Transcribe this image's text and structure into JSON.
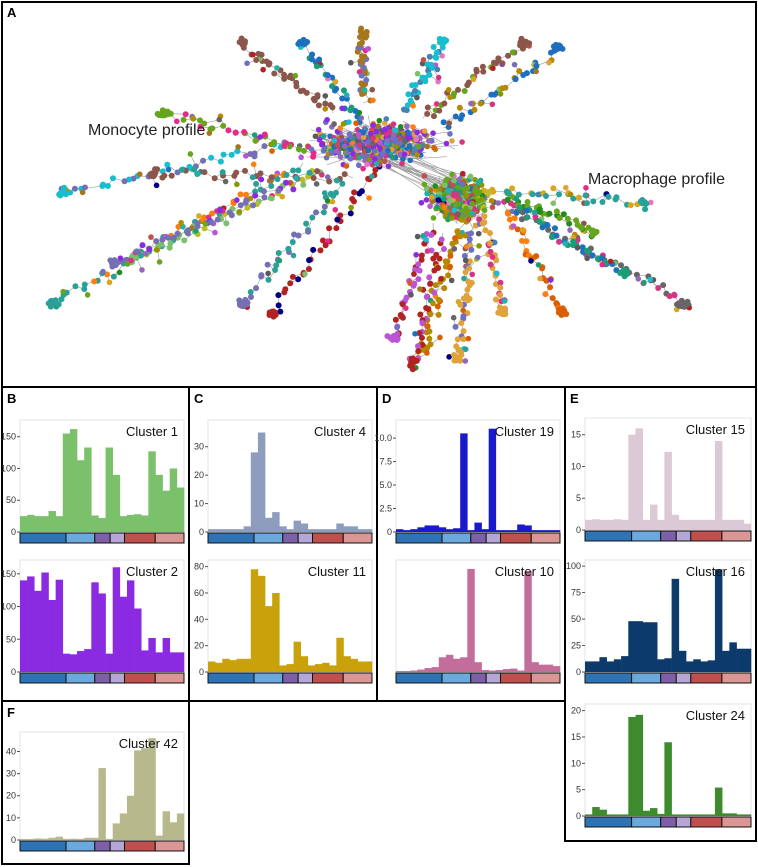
{
  "network": {
    "panel_label": "A",
    "left_label": "Monocyte profile",
    "right_label": "Macrophage profile"
  },
  "colorbar": [
    "#2e74b5",
    "#6aa8de",
    "#7d60a8",
    "#b4a7d6",
    "#c0504d",
    "#d99694"
  ],
  "panels": [
    {
      "label": "B"
    },
    {
      "label": "C"
    },
    {
      "label": "D"
    },
    {
      "label": "E"
    },
    {
      "label": "F"
    }
  ],
  "chart_data": [
    {
      "type": "bar",
      "title": "Cluster 1",
      "color": "#7bc16b",
      "ylim": [
        0,
        170
      ],
      "yticks": [
        "150",
        "100",
        "50",
        "0"
      ],
      "ytick_values": [
        150,
        100,
        50,
        0
      ],
      "values": [
        25,
        27,
        25,
        25,
        33,
        25,
        155,
        162,
        113,
        133,
        26,
        22,
        133,
        90,
        25,
        27,
        28,
        26,
        127,
        90,
        65,
        100,
        70
      ]
    },
    {
      "type": "bar",
      "title": "Cluster 2",
      "color": "#8a2be2",
      "ylim": [
        0,
        165
      ],
      "yticks": [
        "150",
        "100",
        "50",
        "0"
      ],
      "ytick_values": [
        150,
        100,
        50,
        0
      ],
      "values": [
        140,
        146,
        124,
        152,
        110,
        141,
        28,
        27,
        32,
        35,
        137,
        120,
        28,
        160,
        115,
        140,
        97,
        33,
        52,
        30,
        52,
        30,
        30
      ]
    },
    {
      "type": "bar",
      "title": "Cluster 4",
      "color": "#8e9dbe",
      "ylim": [
        0,
        38
      ],
      "yticks": [
        "30",
        "20",
        "10",
        "0"
      ],
      "ytick_values": [
        30,
        20,
        10,
        0
      ],
      "values": [
        1,
        1,
        1,
        1,
        1,
        2,
        28,
        35,
        5,
        7,
        2,
        1,
        4,
        3,
        1,
        1,
        1,
        1,
        3,
        2,
        2,
        1,
        1
      ]
    },
    {
      "type": "bar",
      "title": "Cluster 11",
      "color": "#c9a10a",
      "ylim": [
        0,
        82
      ],
      "yticks": [
        "80",
        "60",
        "40",
        "20",
        "0"
      ],
      "ytick_values": [
        80,
        60,
        40,
        20,
        0
      ],
      "values": [
        8,
        7,
        10,
        9,
        10,
        10,
        78,
        73,
        50,
        60,
        5,
        6,
        23,
        12,
        5,
        6,
        7,
        5,
        26,
        12,
        10,
        8,
        8
      ]
    },
    {
      "type": "bar",
      "title": "Cluster 19",
      "color": "#1a1acc",
      "ylim": [
        0,
        11.5
      ],
      "yticks": [
        "10.0",
        "7.5",
        "5.0",
        "2.5",
        "0"
      ],
      "ytick_values": [
        10,
        7.5,
        5,
        2.5,
        0
      ],
      "values": [
        0.3,
        0.2,
        0.3,
        0.5,
        0.7,
        0.7,
        0.5,
        0.3,
        0.4,
        10.5,
        0.2,
        1,
        0.3,
        11,
        0.2,
        0.2,
        0.2,
        0.8,
        0.7,
        0.2,
        0.2,
        0.2,
        0.2
      ]
    },
    {
      "type": "bar",
      "title": "Cluster 10",
      "color": "#c36e9a",
      "ylim": [
        0,
        22
      ],
      "yticks": [],
      "ytick_values": [],
      "values": [
        0.2,
        0.2,
        0.3,
        0.5,
        0.8,
        1,
        3,
        3.5,
        2.7,
        3,
        21,
        2,
        0.4,
        0.3,
        0.4,
        0.6,
        0.7,
        0.3,
        20.5,
        2,
        1.5,
        1.5,
        1.2
      ]
    },
    {
      "type": "bar",
      "title": "Cluster 15",
      "color": "#dcc9d6",
      "ylim": [
        0,
        17
      ],
      "yticks": [
        "15",
        "10",
        "5",
        "0"
      ],
      "ytick_values": [
        15,
        10,
        5,
        0
      ],
      "values": [
        1.6,
        1.7,
        1.6,
        1.6,
        1.7,
        1.6,
        15,
        16,
        1.6,
        4,
        1.6,
        12.3,
        2.4,
        1.6,
        1.6,
        1.6,
        1.6,
        1.6,
        14,
        1.6,
        1.6,
        1.6,
        1
      ]
    },
    {
      "type": "bar",
      "title": "Cluster 16",
      "color": "#0b3a6b",
      "ylim": [
        0,
        102
      ],
      "yticks": [
        "100",
        "75",
        "50",
        "25",
        "0"
      ],
      "ytick_values": [
        100,
        75,
        50,
        25,
        0
      ],
      "values": [
        10,
        10,
        14,
        10,
        12,
        15,
        48,
        48,
        47,
        47,
        12,
        13,
        88,
        20,
        10,
        12,
        10,
        11,
        97,
        20,
        28,
        22,
        22
      ]
    },
    {
      "type": "bar",
      "title": "Cluster 24",
      "color": "#3d8b2c",
      "ylim": [
        0,
        20.5
      ],
      "yticks": [
        "20",
        "15",
        "10",
        "5",
        "0"
      ],
      "ytick_values": [
        20,
        15,
        10,
        5,
        0
      ],
      "values": [
        0.3,
        1.7,
        1.2,
        0.3,
        0.3,
        0.3,
        18.8,
        19.2,
        1,
        1.5,
        0.4,
        14,
        0.3,
        0.3,
        0.3,
        0.3,
        0.3,
        0.3,
        5.4,
        0.5,
        0.5,
        0.3,
        0.3
      ]
    },
    {
      "type": "bar",
      "title": "Cluster 42",
      "color": "#b7b98c",
      "ylim": [
        0,
        47
      ],
      "yticks": [
        "40",
        "30",
        "20",
        "10",
        "0"
      ],
      "ytick_values": [
        40,
        30,
        20,
        10,
        0
      ],
      "values": [
        0.5,
        0.5,
        0.7,
        0.6,
        1,
        1.5,
        0.5,
        0.6,
        0.5,
        1,
        1,
        32.5,
        0.5,
        7.5,
        12,
        20,
        40.5,
        41.5,
        46,
        2,
        13,
        8,
        12
      ]
    }
  ]
}
